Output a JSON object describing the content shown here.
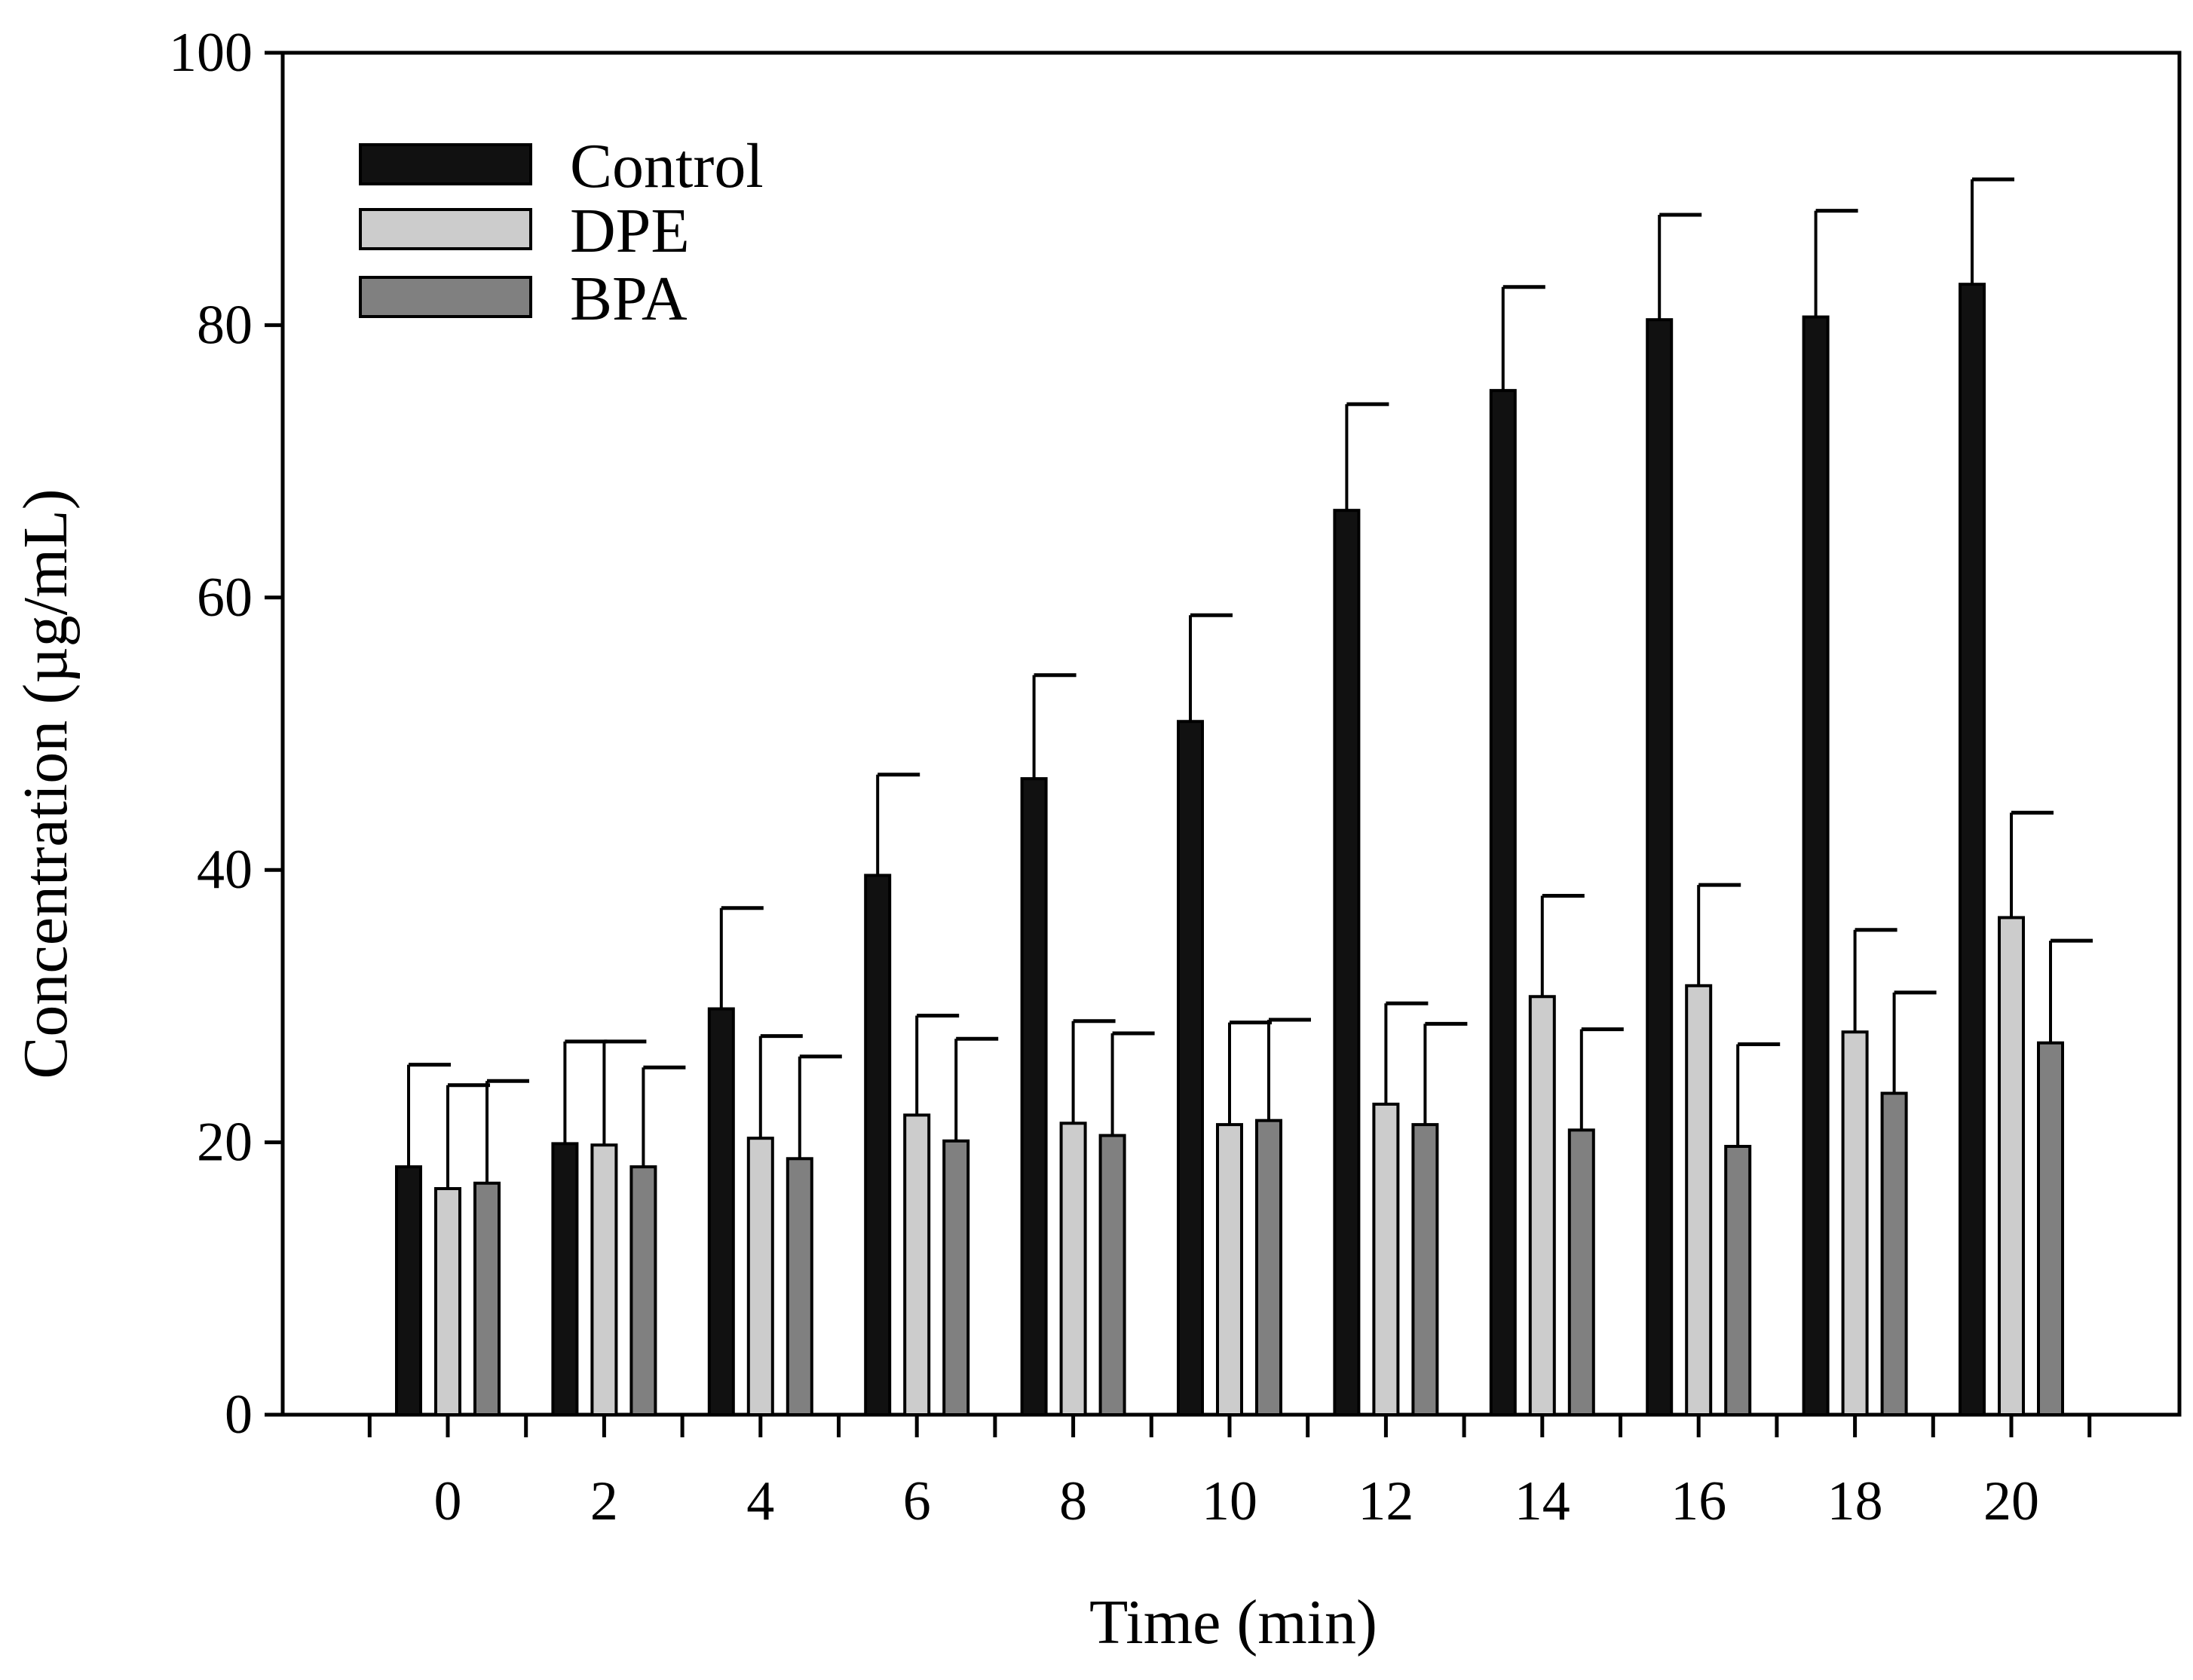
{
  "chart_data": {
    "type": "bar",
    "xlabel": "Time (min)",
    "ylabel": "Concentration (µg/mL)",
    "ylim": [
      0,
      100
    ],
    "yticks": [
      0,
      20,
      40,
      60,
      80,
      100
    ],
    "categories": [
      "0",
      "2",
      "4",
      "6",
      "8",
      "10",
      "12",
      "14",
      "16",
      "18",
      "20"
    ],
    "error_bars": "upper",
    "legend_position": "top-left",
    "grid": false,
    "series": [
      {
        "name": "Control",
        "color": "#111111",
        "values": [
          18.2,
          19.9,
          29.8,
          39.6,
          46.7,
          50.9,
          66.4,
          75.2,
          80.4,
          80.6,
          83.0
        ],
        "errors": [
          7.5,
          7.5,
          7.4,
          7.4,
          7.6,
          7.8,
          7.8,
          7.6,
          7.7,
          7.8,
          7.7
        ]
      },
      {
        "name": "DPE",
        "color": "#cccccc",
        "values": [
          16.6,
          19.8,
          20.3,
          22.0,
          21.4,
          21.3,
          22.8,
          30.7,
          31.5,
          28.1,
          36.5
        ],
        "errors": [
          7.6,
          7.6,
          7.5,
          7.3,
          7.5,
          7.5,
          7.4,
          7.4,
          7.4,
          7.5,
          7.7
        ]
      },
      {
        "name": "BPA",
        "color": "#808080",
        "values": [
          17.0,
          18.2,
          18.8,
          20.1,
          20.5,
          21.6,
          21.3,
          20.9,
          19.7,
          23.6,
          27.3
        ],
        "errors": [
          7.5,
          7.3,
          7.5,
          7.5,
          7.5,
          7.4,
          7.4,
          7.4,
          7.5,
          7.4,
          7.5
        ]
      }
    ]
  }
}
